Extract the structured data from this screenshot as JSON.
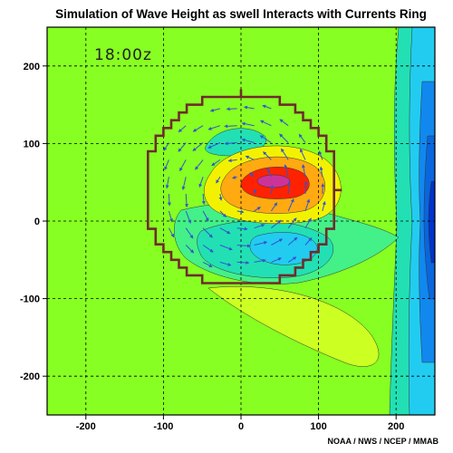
{
  "chart_data": {
    "type": "heatmap",
    "title": "Simulation of Wave Height as swell Interacts with Currents Ring",
    "timestamp": "18:00z",
    "credit": "NOAA / NWS / NCEP / MMAB",
    "xlim": [
      -250,
      250
    ],
    "ylim": [
      -250,
      250
    ],
    "x_ticks": [
      -200,
      -100,
      0,
      100,
      200
    ],
    "y_ticks": [
      200,
      100,
      0,
      -100,
      -200
    ],
    "grid": true,
    "ring": {
      "center": [
        0,
        40
      ],
      "radius": 125
    },
    "features": [
      {
        "kind": "high",
        "center": [
          40,
          48
        ],
        "level": "red"
      },
      {
        "kind": "low",
        "center": [
          50,
          -40
        ],
        "level": "cyan"
      },
      {
        "kind": "low",
        "center": [
          -20,
          85
        ],
        "level": "teal"
      },
      {
        "kind": "high",
        "center": [
          60,
          -80
        ],
        "level": "yellow"
      },
      {
        "kind": "low",
        "center": [
          240,
          0
        ],
        "level": "blue"
      }
    ],
    "colors": {
      "background": "#87ff22",
      "yellow_green": "#ccff22",
      "yellow": "#f2f200",
      "orange": "#ffaa11",
      "red": "#ff2200",
      "magenta": "#cc3399",
      "light_green": "#44f088",
      "teal": "#22e0b4",
      "cyan": "#22ccf0",
      "blue": "#1188ee",
      "dark_blue": "#0033cc",
      "ring": "#6e2c2c",
      "vectors": "#3355cc"
    }
  }
}
